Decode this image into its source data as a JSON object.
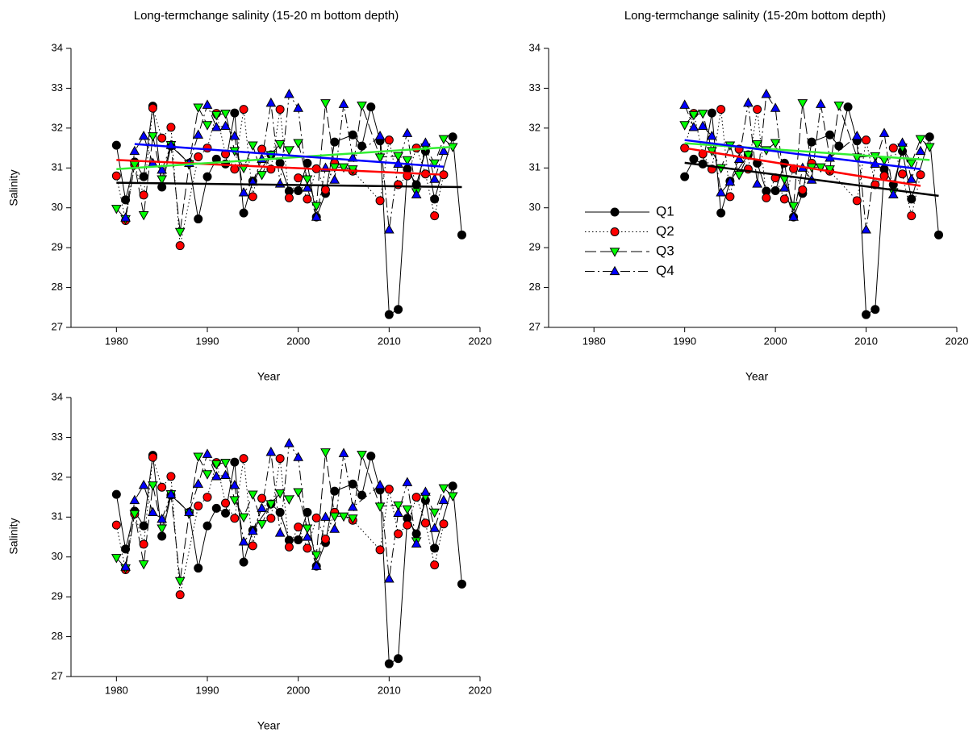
{
  "chart_data": [
    {
      "type": "line",
      "title": "Long-termchange salinity (15-20 m bottom depth)",
      "x_label": "Year",
      "y_label": "Salinity",
      "xlim": [
        1975,
        2020
      ],
      "xticks": [
        1980,
        1990,
        2000,
        2010,
        2020
      ],
      "ylim": [
        27,
        34
      ],
      "yticks": [
        27,
        28,
        29,
        30,
        31,
        32,
        33,
        34
      ],
      "legend": false,
      "series": [
        {
          "color": "#000000",
          "marker": "circle",
          "dash": "solid",
          "x": [
            1980,
            1981,
            1982,
            1983,
            1984,
            1985,
            1986,
            1988,
            1989,
            1990,
            1991,
            1992,
            1993,
            1994,
            1995,
            1997,
            1998,
            1999,
            2000,
            2001,
            2002,
            2003,
            2004,
            2006,
            2007,
            2008,
            2009,
            2010,
            2011,
            2012,
            2013,
            2014,
            2015,
            2017,
            2018
          ],
          "values": [
            31.57,
            30.2,
            31.15,
            30.78,
            32.55,
            30.52,
            31.55,
            31.12,
            29.72,
            30.78,
            31.22,
            31.1,
            32.38,
            29.87,
            30.67,
            31.33,
            31.12,
            30.42,
            30.43,
            31.12,
            29.77,
            30.36,
            31.65,
            31.83,
            31.55,
            32.53,
            31.68,
            27.32,
            27.45,
            30.97,
            30.58,
            31.42,
            30.22,
            31.78,
            29.32
          ],
          "trend": {
            "x": [
              1980,
              2018
            ],
            "values": [
              30.63,
              30.52
            ]
          }
        },
        {
          "color": "#ff0000",
          "marker": "circle",
          "dash": "dotted",
          "x": [
            1980,
            1981,
            1982,
            1983,
            1984,
            1985,
            1986,
            1987,
            1989,
            1990,
            1991,
            1992,
            1993,
            1994,
            1995,
            1996,
            1997,
            1998,
            1999,
            2000,
            2001,
            2002,
            2003,
            2004,
            2006,
            2009,
            2010,
            2011,
            2012,
            2013,
            2014,
            2015,
            2016
          ],
          "values": [
            30.8,
            29.68,
            31.08,
            30.32,
            32.5,
            31.75,
            32.02,
            29.05,
            31.28,
            31.5,
            32.37,
            31.35,
            30.97,
            32.47,
            30.28,
            31.47,
            30.97,
            32.47,
            30.25,
            30.75,
            30.22,
            30.98,
            30.45,
            31.12,
            30.92,
            30.18,
            31.7,
            30.58,
            30.8,
            31.5,
            30.85,
            29.8,
            30.83
          ],
          "trend": {
            "x": [
              1980,
              2016
            ],
            "values": [
              31.2,
              30.83
            ]
          }
        },
        {
          "color": "#00ff00",
          "marker": "down",
          "dash": "dashed",
          "x": [
            1980,
            1981,
            1982,
            1983,
            1984,
            1985,
            1986,
            1987,
            1988,
            1989,
            1990,
            1991,
            1992,
            1993,
            1994,
            1995,
            1996,
            1997,
            1998,
            1999,
            2000,
            2001,
            2002,
            2003,
            2004,
            2005,
            2006,
            2007,
            2009,
            2011,
            2012,
            2013,
            2014,
            2015,
            2016,
            2017
          ],
          "values": [
            29.98,
            29.72,
            31.08,
            29.82,
            31.8,
            30.72,
            31.58,
            29.4,
            31.1,
            32.52,
            32.08,
            32.33,
            32.37,
            31.43,
            31.0,
            31.57,
            30.83,
            31.33,
            31.6,
            31.45,
            31.63,
            30.72,
            30.05,
            32.63,
            31.02,
            31.02,
            30.97,
            32.57,
            31.27,
            31.3,
            31.2,
            30.4,
            31.52,
            31.12,
            31.73,
            31.53
          ],
          "trend": {
            "x": [
              1980,
              2017
            ],
            "values": [
              30.97,
              31.53
            ]
          }
        },
        {
          "color": "#0000ff",
          "marker": "up",
          "dash": "dashdot",
          "x": [
            1981,
            1982,
            1983,
            1984,
            1985,
            1986,
            1988,
            1989,
            1990,
            1991,
            1992,
            1993,
            1994,
            1995,
            1996,
            1997,
            1998,
            1999,
            2000,
            2001,
            2002,
            2003,
            2004,
            2005,
            2006,
            2009,
            2010,
            2011,
            2012,
            2013,
            2014,
            2015,
            2016
          ],
          "values": [
            29.75,
            31.42,
            31.8,
            31.12,
            30.95,
            31.57,
            31.12,
            31.83,
            32.58,
            32.02,
            32.05,
            31.8,
            30.38,
            30.65,
            31.22,
            32.63,
            30.6,
            32.85,
            32.5,
            30.5,
            29.77,
            31.0,
            30.7,
            32.6,
            31.25,
            31.8,
            29.45,
            31.1,
            31.87,
            30.33,
            31.63,
            30.72,
            31.42
          ],
          "trend": {
            "x": [
              1982,
              2016
            ],
            "values": [
              31.6,
              31.03
            ]
          }
        }
      ]
    },
    {
      "type": "line",
      "title": "Long-termchange salinity (15-20m bottom depth)",
      "x_label": "Year",
      "xlim": [
        1975,
        2020
      ],
      "xticks": [
        1980,
        1990,
        2000,
        2010,
        2020
      ],
      "ylim": [
        27,
        34
      ],
      "yticks": [
        27,
        28,
        29,
        30,
        31,
        32,
        33,
        34
      ],
      "legend": "center-left",
      "series": [
        {
          "name": "Q1",
          "color": "#000000",
          "marker": "circle",
          "dash": "solid",
          "x": [
            1990,
            1991,
            1992,
            1993,
            1994,
            1995,
            1997,
            1998,
            1999,
            2000,
            2001,
            2002,
            2003,
            2004,
            2006,
            2007,
            2008,
            2009,
            2010,
            2011,
            2012,
            2013,
            2014,
            2015,
            2017,
            2018
          ],
          "values": [
            30.78,
            31.22,
            31.1,
            32.38,
            29.87,
            30.67,
            31.33,
            31.12,
            30.42,
            30.43,
            31.12,
            29.77,
            30.36,
            31.65,
            31.83,
            31.55,
            32.53,
            31.68,
            27.32,
            27.45,
            30.97,
            30.58,
            31.42,
            30.22,
            31.78,
            29.32
          ],
          "trend": {
            "x": [
              1990,
              2018
            ],
            "values": [
              31.13,
              30.3
            ]
          }
        },
        {
          "name": "Q2",
          "color": "#ff0000",
          "marker": "circle",
          "dash": "dotted",
          "x": [
            1990,
            1991,
            1992,
            1993,
            1994,
            1995,
            1996,
            1997,
            1998,
            1999,
            2000,
            2001,
            2002,
            2003,
            2004,
            2006,
            2009,
            2010,
            2011,
            2012,
            2013,
            2014,
            2015,
            2016
          ],
          "values": [
            31.5,
            32.37,
            31.35,
            30.97,
            32.47,
            30.28,
            31.47,
            30.97,
            32.47,
            30.25,
            30.75,
            30.22,
            30.98,
            30.45,
            31.12,
            30.92,
            30.18,
            31.7,
            30.58,
            30.8,
            31.5,
            30.85,
            29.8,
            30.83
          ],
          "trend": {
            "x": [
              1990,
              2016
            ],
            "values": [
              31.5,
              30.55
            ]
          }
        },
        {
          "name": "Q3",
          "color": "#00ff00",
          "marker": "down",
          "dash": "dashed",
          "x": [
            1990,
            1991,
            1992,
            1993,
            1994,
            1995,
            1996,
            1997,
            1998,
            1999,
            2000,
            2001,
            2002,
            2003,
            2004,
            2005,
            2006,
            2007,
            2009,
            2011,
            2012,
            2013,
            2014,
            2015,
            2016,
            2017
          ],
          "values": [
            32.08,
            32.33,
            32.37,
            31.43,
            31.0,
            31.57,
            30.83,
            31.33,
            31.6,
            31.45,
            31.63,
            30.72,
            30.05,
            32.63,
            31.02,
            31.02,
            30.97,
            32.57,
            31.27,
            31.3,
            31.2,
            30.4,
            31.52,
            31.12,
            31.73,
            31.53
          ],
          "trend": {
            "x": [
              1990,
              2017
            ],
            "values": [
              31.62,
              31.2
            ]
          }
        },
        {
          "name": "Q4",
          "color": "#0000ff",
          "marker": "up",
          "dash": "dashdot",
          "x": [
            1990,
            1991,
            1992,
            1993,
            1994,
            1995,
            1996,
            1997,
            1998,
            1999,
            2000,
            2001,
            2002,
            2003,
            2004,
            2005,
            2006,
            2009,
            2010,
            2011,
            2012,
            2013,
            2014,
            2015,
            2016
          ],
          "values": [
            32.58,
            32.02,
            32.05,
            31.8,
            30.38,
            30.65,
            31.22,
            32.63,
            30.6,
            32.85,
            32.5,
            30.5,
            29.77,
            31.0,
            30.7,
            32.6,
            31.25,
            31.8,
            29.45,
            31.1,
            31.87,
            30.33,
            31.63,
            30.72,
            31.42
          ],
          "trend": {
            "x": [
              1990,
              2016
            ],
            "values": [
              31.7,
              30.97
            ]
          }
        }
      ]
    },
    {
      "type": "line",
      "x_label": "Year",
      "y_label": "Salinity",
      "xlim": [
        1975,
        2020
      ],
      "xticks": [
        1980,
        1990,
        2000,
        2010,
        2020
      ],
      "ylim": [
        27,
        34
      ],
      "yticks": [
        27,
        28,
        29,
        30,
        31,
        32,
        33,
        34
      ],
      "legend": false,
      "series": [
        {
          "color": "#000000",
          "marker": "circle",
          "dash": "solid",
          "x": [
            1980,
            1981,
            1982,
            1983,
            1984,
            1985,
            1986,
            1988,
            1989,
            1990,
            1991,
            1992,
            1993,
            1994,
            1995,
            1997,
            1998,
            1999,
            2000,
            2001,
            2002,
            2003,
            2004,
            2006,
            2007,
            2008,
            2009,
            2010,
            2011,
            2012,
            2013,
            2014,
            2015,
            2017,
            2018
          ],
          "values": [
            31.57,
            30.2,
            31.15,
            30.78,
            32.55,
            30.52,
            31.55,
            31.12,
            29.72,
            30.78,
            31.22,
            31.1,
            32.38,
            29.87,
            30.67,
            31.33,
            31.12,
            30.42,
            30.43,
            31.12,
            29.77,
            30.36,
            31.65,
            31.83,
            31.55,
            32.53,
            31.68,
            27.32,
            27.45,
            30.97,
            30.58,
            31.42,
            30.22,
            31.78,
            29.32
          ]
        },
        {
          "color": "#ff0000",
          "marker": "circle",
          "dash": "dotted",
          "x": [
            1980,
            1981,
            1982,
            1983,
            1984,
            1985,
            1986,
            1987,
            1989,
            1990,
            1991,
            1992,
            1993,
            1994,
            1995,
            1996,
            1997,
            1998,
            1999,
            2000,
            2001,
            2002,
            2003,
            2004,
            2006,
            2009,
            2010,
            2011,
            2012,
            2013,
            2014,
            2015,
            2016
          ],
          "values": [
            30.8,
            29.68,
            31.08,
            30.32,
            32.5,
            31.75,
            32.02,
            29.05,
            31.28,
            31.5,
            32.37,
            31.35,
            30.97,
            32.47,
            30.28,
            31.47,
            30.97,
            32.47,
            30.25,
            30.75,
            30.22,
            30.98,
            30.45,
            31.12,
            30.92,
            30.18,
            31.7,
            30.58,
            30.8,
            31.5,
            30.85,
            29.8,
            30.83
          ]
        },
        {
          "color": "#00ff00",
          "marker": "down",
          "dash": "dashed",
          "x": [
            1980,
            1981,
            1982,
            1983,
            1984,
            1985,
            1986,
            1987,
            1988,
            1989,
            1990,
            1991,
            1992,
            1993,
            1994,
            1995,
            1996,
            1997,
            1998,
            1999,
            2000,
            2001,
            2002,
            2003,
            2004,
            2005,
            2006,
            2007,
            2009,
            2011,
            2012,
            2013,
            2014,
            2015,
            2016,
            2017
          ],
          "values": [
            29.98,
            29.72,
            31.08,
            29.82,
            31.8,
            30.72,
            31.58,
            29.4,
            31.1,
            32.52,
            32.08,
            32.33,
            32.37,
            31.43,
            31.0,
            31.57,
            30.83,
            31.33,
            31.6,
            31.45,
            31.63,
            30.72,
            30.05,
            32.63,
            31.02,
            31.02,
            30.97,
            32.57,
            31.27,
            31.3,
            31.2,
            30.4,
            31.52,
            31.12,
            31.73,
            31.53
          ]
        },
        {
          "color": "#0000ff",
          "marker": "up",
          "dash": "dashdot",
          "x": [
            1981,
            1982,
            1983,
            1984,
            1985,
            1986,
            1988,
            1989,
            1990,
            1991,
            1992,
            1993,
            1994,
            1995,
            1996,
            1997,
            1998,
            1999,
            2000,
            2001,
            2002,
            2003,
            2004,
            2005,
            2006,
            2009,
            2010,
            2011,
            2012,
            2013,
            2014,
            2015,
            2016
          ],
          "values": [
            29.75,
            31.42,
            31.8,
            31.12,
            30.95,
            31.57,
            31.12,
            31.83,
            32.58,
            32.02,
            32.05,
            31.8,
            30.38,
            30.65,
            31.22,
            32.63,
            30.6,
            32.85,
            32.5,
            30.5,
            29.77,
            31.0,
            30.7,
            32.6,
            31.25,
            31.8,
            29.45,
            31.1,
            31.87,
            30.33,
            31.63,
            30.72,
            31.42
          ]
        }
      ]
    }
  ]
}
